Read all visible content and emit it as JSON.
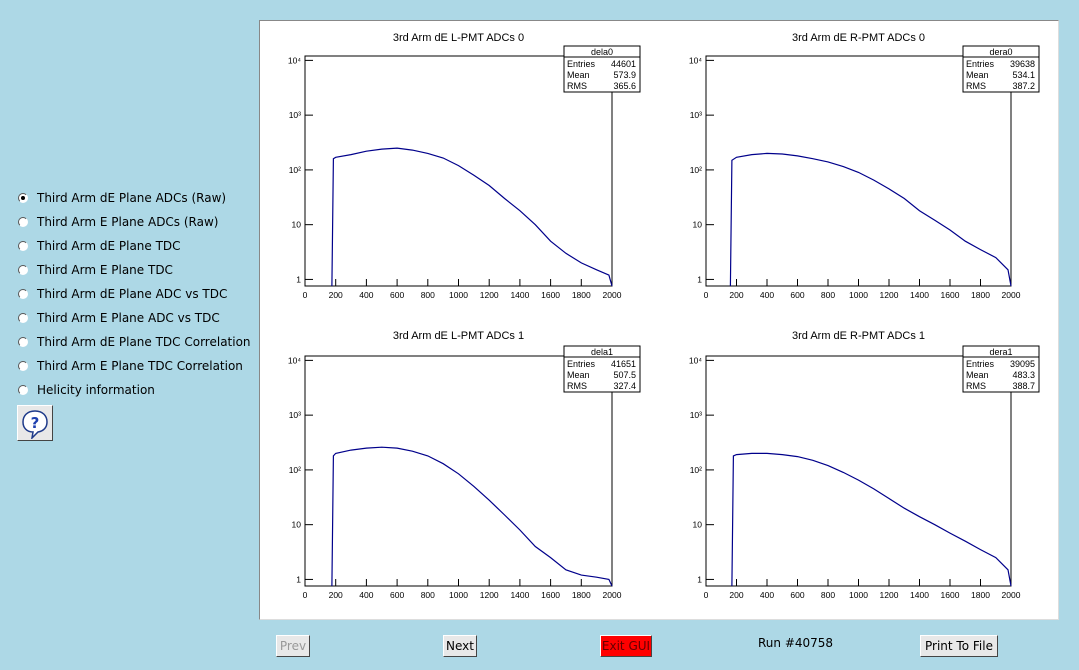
{
  "sidebar": {
    "options": [
      {
        "label": "Third Arm dE Plane ADCs (Raw)",
        "selected": true
      },
      {
        "label": "Third Arm E Plane ADCs (Raw)",
        "selected": false
      },
      {
        "label": "Third Arm dE Plane TDC",
        "selected": false
      },
      {
        "label": "Third Arm E Plane TDC",
        "selected": false
      },
      {
        "label": "Third Arm dE Plane ADC vs TDC",
        "selected": false
      },
      {
        "label": "Third Arm E Plane ADC vs TDC",
        "selected": false
      },
      {
        "label": "Third Arm dE Plane TDC Correlation",
        "selected": false
      },
      {
        "label": "Third Arm E Plane TDC Correlation",
        "selected": false
      },
      {
        "label": "Helicity information",
        "selected": false
      }
    ],
    "help_icon": "question-mark-speech-bubble-icon"
  },
  "toolbar": {
    "prev_label": "Prev",
    "next_label": "Next",
    "exit_label": "Exit GUI",
    "run_label": "Run #40758",
    "print_label": "Print To File"
  },
  "colors": {
    "background": "#add8e6",
    "histogram_line": "#00008b",
    "exit_button": "#ff0000"
  },
  "chart_data": [
    {
      "type": "line",
      "title": "3rd Arm dE L-PMT ADCs 0",
      "stats": {
        "name": "dela0",
        "entries": "44601",
        "mean": "573.9",
        "rms": "365.6"
      },
      "xlim": [
        0,
        2000
      ],
      "ylog": true,
      "ylim_decades": [
        0,
        4
      ],
      "x_ticks": [
        "0",
        "200",
        "400",
        "600",
        "800",
        "1000",
        "1200",
        "1400",
        "1600",
        "1800",
        "2000"
      ],
      "y_ticks": [
        "1",
        "10",
        "10²",
        "10³",
        "10⁴"
      ],
      "x": [
        175,
        185,
        200,
        300,
        400,
        500,
        600,
        700,
        800,
        900,
        1000,
        1100,
        1200,
        1300,
        1400,
        1500,
        1600,
        1700,
        1800,
        1900,
        1980,
        2000
      ],
      "y": [
        0,
        160,
        170,
        190,
        220,
        240,
        250,
        230,
        200,
        165,
        120,
        80,
        52,
        30,
        18,
        10,
        5,
        3,
        2,
        1.5,
        1.2,
        0
      ]
    },
    {
      "type": "line",
      "title": "3rd Arm dE R-PMT ADCs 0",
      "stats": {
        "name": "dera0",
        "entries": "39638",
        "mean": "534.1",
        "rms": "387.2"
      },
      "xlim": [
        0,
        2000
      ],
      "ylog": true,
      "ylim_decades": [
        0,
        4
      ],
      "x_ticks": [
        "0",
        "200",
        "400",
        "600",
        "800",
        "1000",
        "1200",
        "1400",
        "1600",
        "1800",
        "2000"
      ],
      "y_ticks": [
        "1",
        "10",
        "10²",
        "10³",
        "10⁴"
      ],
      "x": [
        160,
        170,
        200,
        300,
        400,
        500,
        600,
        700,
        800,
        900,
        1000,
        1100,
        1200,
        1300,
        1400,
        1500,
        1600,
        1700,
        1800,
        1900,
        1980,
        2000
      ],
      "y": [
        0,
        150,
        170,
        190,
        200,
        195,
        180,
        160,
        140,
        115,
        90,
        65,
        45,
        30,
        18,
        12,
        8,
        5,
        3.5,
        2.5,
        1.5,
        0
      ]
    },
    {
      "type": "line",
      "title": "3rd Arm dE L-PMT ADCs 1",
      "stats": {
        "name": "dela1",
        "entries": "41651",
        "mean": "507.5",
        "rms": "327.4"
      },
      "xlim": [
        0,
        2000
      ],
      "ylog": true,
      "ylim_decades": [
        0,
        4
      ],
      "x_ticks": [
        "0",
        "200",
        "400",
        "600",
        "800",
        "1000",
        "1200",
        "1400",
        "1600",
        "1800",
        "2000"
      ],
      "y_ticks": [
        "1",
        "10",
        "10²",
        "10³",
        "10⁴"
      ],
      "x": [
        175,
        185,
        200,
        300,
        400,
        500,
        600,
        700,
        800,
        900,
        1000,
        1100,
        1200,
        1300,
        1400,
        1500,
        1600,
        1700,
        1800,
        1900,
        1980,
        2000
      ],
      "y": [
        0,
        180,
        200,
        230,
        250,
        260,
        250,
        220,
        180,
        130,
        85,
        50,
        28,
        15,
        8,
        4,
        2.5,
        1.5,
        1.2,
        1.1,
        1,
        0
      ]
    },
    {
      "type": "line",
      "title": "3rd Arm dE R-PMT ADCs 1",
      "stats": {
        "name": "dera1",
        "entries": "39095",
        "mean": "483.3",
        "rms": "388.7"
      },
      "xlim": [
        0,
        2000
      ],
      "ylog": true,
      "ylim_decades": [
        0,
        4
      ],
      "x_ticks": [
        "0",
        "200",
        "400",
        "600",
        "800",
        "1000",
        "1200",
        "1400",
        "1600",
        "1800",
        "2000"
      ],
      "y_ticks": [
        "1",
        "10",
        "10²",
        "10³",
        "10⁴"
      ],
      "x": [
        170,
        180,
        200,
        300,
        400,
        500,
        600,
        700,
        800,
        900,
        1000,
        1100,
        1200,
        1300,
        1400,
        1500,
        1600,
        1700,
        1800,
        1900,
        1980,
        2000
      ],
      "y": [
        0,
        180,
        190,
        200,
        200,
        190,
        175,
        150,
        120,
        90,
        65,
        45,
        30,
        20,
        14,
        10,
        7,
        5,
        3.5,
        2.5,
        1.5,
        0
      ]
    }
  ]
}
